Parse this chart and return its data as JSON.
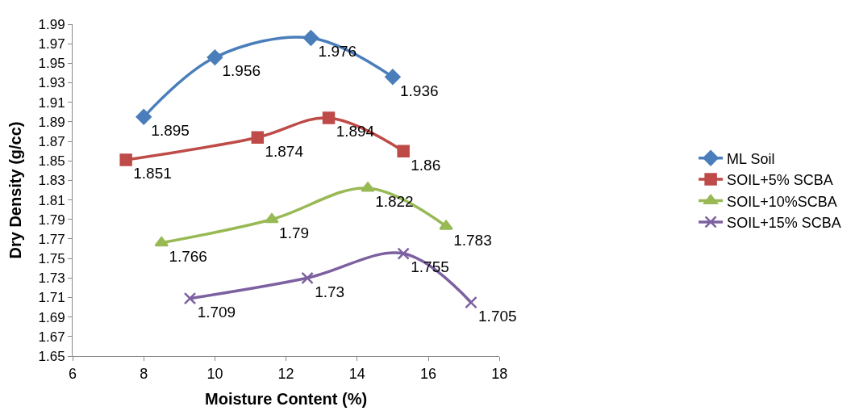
{
  "chart_data": {
    "type": "line",
    "xlabel": "Moisture Content (%)",
    "ylabel": "Dry Density (g/cc)",
    "xlim": [
      6,
      18
    ],
    "xticks": [
      6,
      8,
      10,
      12,
      14,
      16,
      18
    ],
    "ylim": [
      1.65,
      1.99
    ],
    "yticks": [
      1.65,
      1.67,
      1.69,
      1.71,
      1.73,
      1.75,
      1.77,
      1.79,
      1.81,
      1.83,
      1.85,
      1.87,
      1.89,
      1.91,
      1.93,
      1.95,
      1.97,
      1.99
    ],
    "legend": "right",
    "data_labels": true,
    "series": [
      {
        "name": "ML Soil",
        "color": "#4a7ebb",
        "marker": "diamond",
        "x": [
          8,
          10,
          12.7,
          15
        ],
        "values": [
          1.895,
          1.956,
          1.976,
          1.936
        ]
      },
      {
        "name": "SOIL+5% SCBA",
        "color": "#be4b48",
        "marker": "square",
        "x": [
          7.5,
          11.2,
          13.2,
          15.3
        ],
        "values": [
          1.851,
          1.874,
          1.894,
          1.86
        ]
      },
      {
        "name": "SOIL+10%SCBA",
        "color": "#98b954",
        "marker": "triangle",
        "x": [
          8.5,
          11.6,
          14.3,
          16.5
        ],
        "values": [
          1.766,
          1.79,
          1.822,
          1.783
        ]
      },
      {
        "name": "SOIL+15% SCBA",
        "color": "#7d60a0",
        "marker": "cross",
        "x": [
          9.3,
          12.6,
          15.3,
          17.2
        ],
        "values": [
          1.709,
          1.73,
          1.755,
          1.705
        ]
      }
    ]
  }
}
